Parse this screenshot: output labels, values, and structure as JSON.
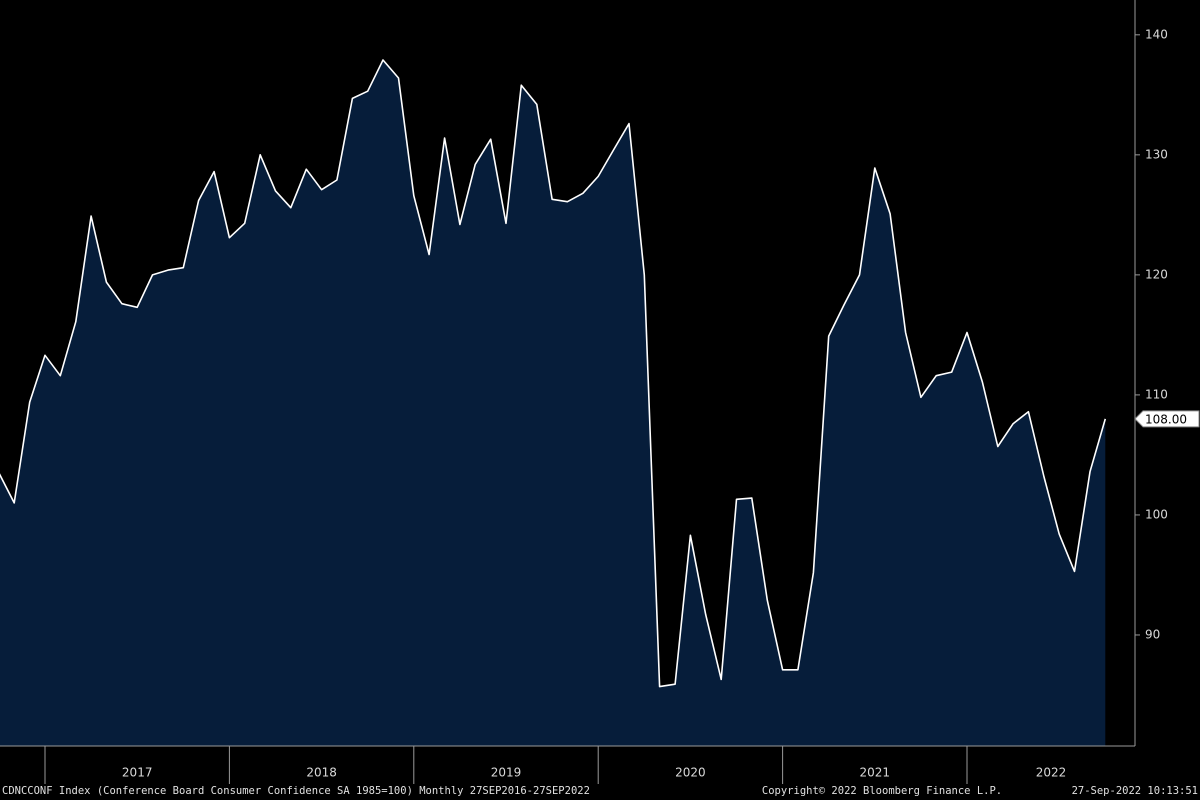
{
  "chart_data": {
    "type": "area",
    "x": [
      2016.75,
      2016.833,
      2016.917,
      2017.0,
      2017.083,
      2017.167,
      2017.25,
      2017.333,
      2017.417,
      2017.5,
      2017.583,
      2017.667,
      2017.75,
      2017.833,
      2017.917,
      2018.0,
      2018.083,
      2018.167,
      2018.25,
      2018.333,
      2018.417,
      2018.5,
      2018.583,
      2018.667,
      2018.75,
      2018.833,
      2018.917,
      2019.0,
      2019.083,
      2019.167,
      2019.25,
      2019.333,
      2019.417,
      2019.5,
      2019.583,
      2019.667,
      2019.75,
      2019.833,
      2019.917,
      2020.0,
      2020.083,
      2020.167,
      2020.25,
      2020.333,
      2020.417,
      2020.5,
      2020.583,
      2020.667,
      2020.75,
      2020.833,
      2020.917,
      2021.0,
      2021.083,
      2021.167,
      2021.25,
      2021.333,
      2021.417,
      2021.5,
      2021.583,
      2021.667,
      2021.75,
      2021.833,
      2021.917,
      2022.0,
      2022.083,
      2022.167,
      2022.25,
      2022.333,
      2022.417,
      2022.5,
      2022.583,
      2022.667,
      2022.75
    ],
    "values": [
      103.5,
      101.0,
      109.4,
      113.3,
      111.6,
      116.1,
      124.9,
      119.4,
      117.6,
      117.3,
      120.0,
      120.4,
      120.6,
      126.2,
      128.6,
      123.1,
      124.3,
      130.0,
      127.0,
      125.6,
      128.8,
      127.1,
      127.9,
      134.7,
      135.3,
      137.9,
      136.4,
      126.6,
      121.7,
      131.4,
      124.2,
      129.2,
      131.3,
      124.3,
      135.8,
      134.2,
      126.3,
      126.1,
      126.8,
      128.2,
      130.4,
      132.6,
      120.0,
      85.7,
      85.9,
      98.3,
      91.7,
      86.3,
      101.3,
      101.4,
      92.9,
      87.1,
      87.1,
      95.2,
      114.9,
      117.5,
      120.0,
      128.9,
      125.1,
      115.2,
      109.8,
      111.6,
      111.9,
      115.2,
      111.1,
      105.7,
      107.6,
      108.6,
      103.2,
      98.4,
      95.3,
      103.6,
      108.0
    ],
    "value_labels": [
      null,
      null,
      null,
      null,
      null,
      null,
      null,
      null,
      null,
      null,
      null,
      null,
      null,
      null,
      null,
      null,
      null,
      null,
      null,
      null,
      null,
      null,
      null,
      null,
      null,
      null,
      null,
      null,
      null,
      null,
      null,
      null,
      null,
      null,
      null,
      null,
      null,
      null,
      null,
      null,
      null,
      null,
      null,
      null,
      null,
      null,
      null,
      null,
      null,
      null,
      null,
      null,
      null,
      null,
      null,
      null,
      null,
      null,
      null,
      null,
      null,
      null,
      null,
      null,
      null,
      null,
      null,
      null,
      null,
      null,
      null,
      null,
      "108.00"
    ],
    "color": "#ffffff",
    "fill": "#061d3a",
    "xlim": [
      2016.756,
      2022.911
    ],
    "xticks": [
      2017,
      2018,
      2019,
      2020,
      2021,
      2022
    ],
    "ylim": [
      80.75,
      142.9
    ],
    "yticks": [
      90,
      100,
      110,
      120,
      130,
      140
    ],
    "footer": {
      "description": "CDNCCONF Index (Conference Board Consumer Confidence SA 1985=100)  Monthly 27SEP2016-27SEP2022",
      "copyright": "Copyright© 2022 Bloomberg Finance L.P.",
      "timestamp": "27-Sep-2022 10:13:51"
    }
  }
}
